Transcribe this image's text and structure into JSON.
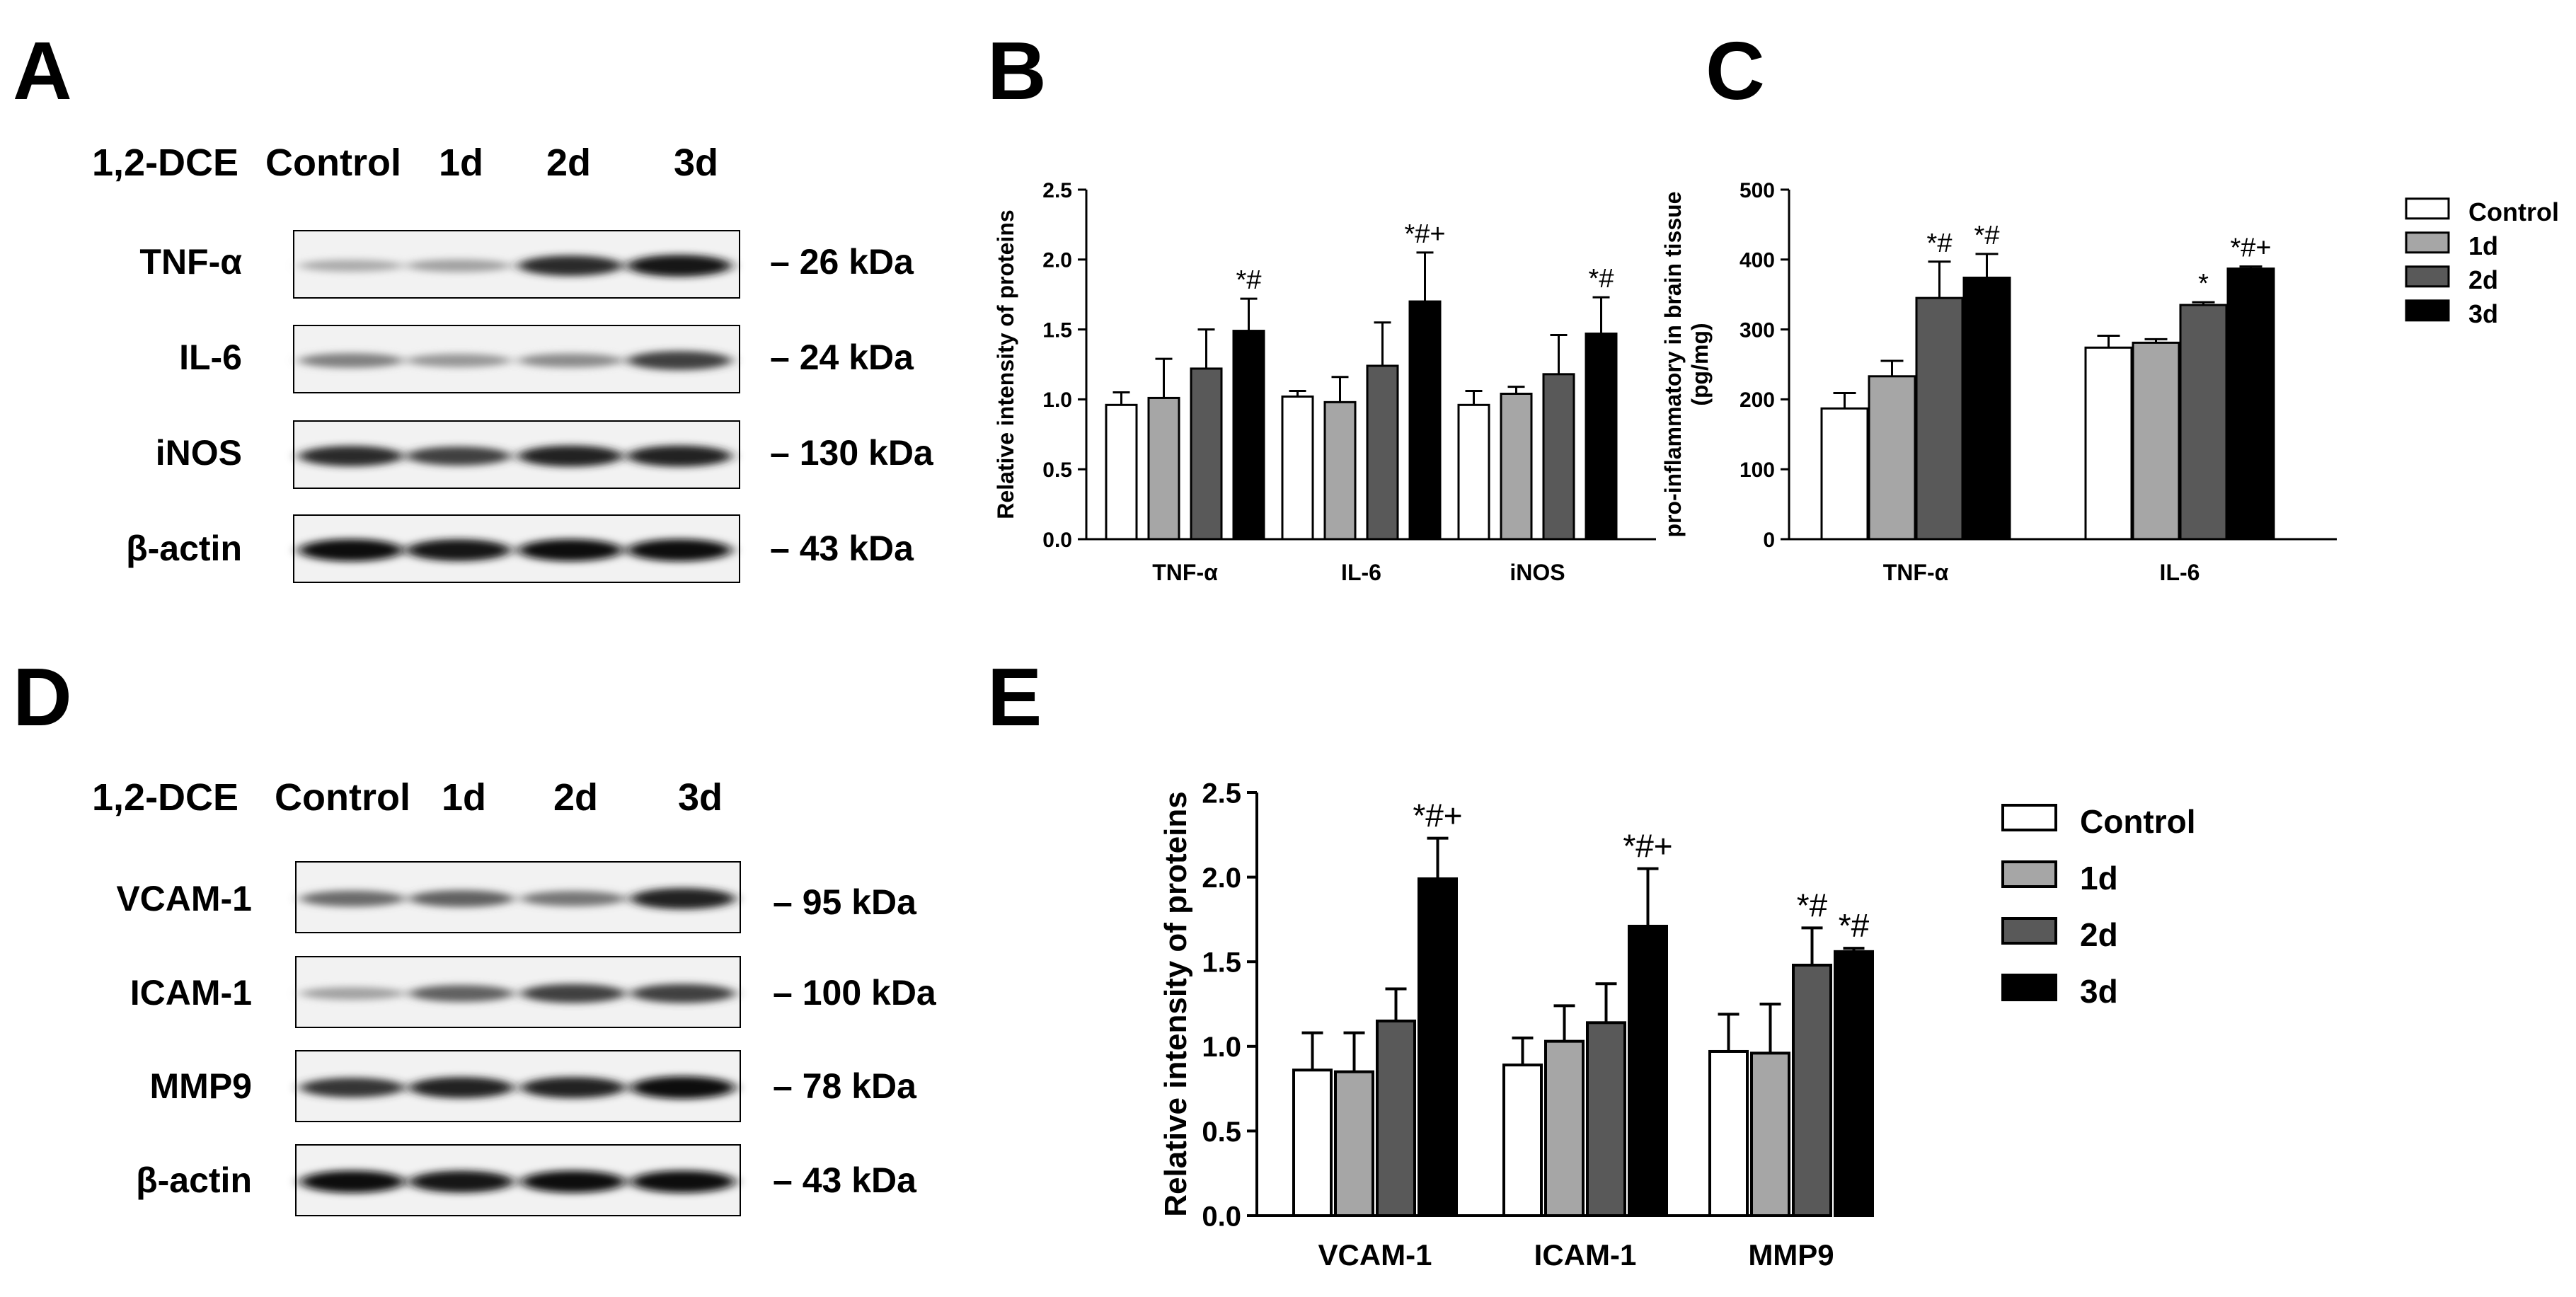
{
  "panel_labels": {
    "A": "A",
    "B": "B",
    "C": "C",
    "D": "D",
    "E": "E"
  },
  "blot_A": {
    "treatment_label": "1,2-DCE",
    "lanes": [
      "Control",
      "1d",
      "2d",
      "3d"
    ],
    "rows": [
      {
        "protein": "TNF-α",
        "marker": "– 26 kDa",
        "intensity": [
          0.25,
          0.3,
          0.85,
          0.95
        ]
      },
      {
        "protein": "IL-6",
        "marker": "– 24 kDa",
        "intensity": [
          0.45,
          0.35,
          0.4,
          0.75
        ]
      },
      {
        "protein": "iNOS",
        "marker": "– 130 kDa",
        "intensity": [
          0.85,
          0.75,
          0.9,
          0.9
        ]
      },
      {
        "protein": "β-actin",
        "marker": "– 43 kDa",
        "intensity": [
          0.98,
          0.95,
          0.97,
          0.98
        ]
      }
    ]
  },
  "blot_D": {
    "treatment_label": "1,2-DCE",
    "lanes": [
      "Control",
      "1d",
      "2d",
      "3d"
    ],
    "rows": [
      {
        "protein": "VCAM-1",
        "marker": "– 95 kDa",
        "intensity": [
          0.55,
          0.6,
          0.5,
          0.9
        ]
      },
      {
        "protein": "ICAM-1",
        "marker": "– 100 kDa",
        "intensity": [
          0.3,
          0.6,
          0.75,
          0.75
        ]
      },
      {
        "protein": "MMP9",
        "marker": "– 78 kDa",
        "intensity": [
          0.8,
          0.9,
          0.9,
          1.0
        ]
      },
      {
        "protein": "β-actin",
        "marker": "– 43 kDa",
        "intensity": [
          0.98,
          0.96,
          0.97,
          0.98
        ]
      }
    ]
  },
  "legend": {
    "groups": [
      "Control",
      "1d",
      "2d",
      "3d"
    ],
    "colors": [
      "#ffffff",
      "#a6a6a6",
      "#595959",
      "#000000"
    ]
  },
  "chart_data": [
    {
      "id": "B",
      "type": "bar",
      "title": "",
      "xlabel": "",
      "ylabel": "Relative intensity of proteins",
      "ylim": [
        0,
        2.5
      ],
      "yticks": [
        "0.0",
        "0.5",
        "1.0",
        "1.5",
        "2.0",
        "2.5"
      ],
      "categories": [
        "TNF-α",
        "IL-6",
        "iNOS"
      ],
      "series": [
        {
          "name": "Control",
          "values": [
            0.96,
            1.02,
            0.96
          ],
          "errors": [
            0.09,
            0.04,
            0.1
          ]
        },
        {
          "name": "1d",
          "values": [
            1.01,
            0.98,
            1.04
          ],
          "errors": [
            0.28,
            0.18,
            0.05
          ]
        },
        {
          "name": "2d",
          "values": [
            1.22,
            1.24,
            1.18
          ],
          "errors": [
            0.28,
            0.31,
            0.28
          ]
        },
        {
          "name": "3d",
          "values": [
            1.49,
            1.7,
            1.47
          ],
          "errors": [
            0.23,
            0.35,
            0.26
          ]
        }
      ],
      "annotations": [
        {
          "category": 0,
          "series": 3,
          "text": "*#"
        },
        {
          "category": 1,
          "series": 3,
          "text": "*#+"
        },
        {
          "category": 2,
          "series": 3,
          "text": "*#"
        }
      ]
    },
    {
      "id": "C",
      "type": "bar",
      "title": "",
      "xlabel": "",
      "ylabel": "pro-inflammatory in brain tissue",
      "ylabel2": "(pg/mg)",
      "ylim": [
        0,
        500
      ],
      "yticks": [
        "0",
        "100",
        "200",
        "300",
        "400",
        "500"
      ],
      "categories": [
        "TNF-α",
        "IL-6"
      ],
      "series": [
        {
          "name": "Control",
          "values": [
            187,
            274
          ],
          "errors": [
            22,
            17
          ]
        },
        {
          "name": "1d",
          "values": [
            233,
            281
          ],
          "errors": [
            22,
            5
          ]
        },
        {
          "name": "2d",
          "values": [
            345,
            335
          ],
          "errors": [
            52,
            4
          ]
        },
        {
          "name": "3d",
          "values": [
            374,
            387
          ],
          "errors": [
            34,
            3
          ]
        }
      ],
      "annotations": [
        {
          "category": 0,
          "series": 2,
          "text": "*#"
        },
        {
          "category": 0,
          "series": 3,
          "text": "*#"
        },
        {
          "category": 1,
          "series": 2,
          "text": "*"
        },
        {
          "category": 1,
          "series": 3,
          "text": "*#+"
        }
      ],
      "legend": "right"
    },
    {
      "id": "E",
      "type": "bar",
      "title": "",
      "xlabel": "",
      "ylabel": "Relative intensity of proteins",
      "ylim": [
        0,
        2.5
      ],
      "yticks": [
        "0.0",
        "0.5",
        "1.0",
        "1.5",
        "2.0",
        "2.5"
      ],
      "categories": [
        "VCAM-1",
        "ICAM-1",
        "MMP9"
      ],
      "series": [
        {
          "name": "Control",
          "values": [
            0.86,
            0.89,
            0.97
          ],
          "errors": [
            0.22,
            0.16,
            0.22
          ]
        },
        {
          "name": "1d",
          "values": [
            0.85,
            1.03,
            0.96
          ],
          "errors": [
            0.23,
            0.21,
            0.29
          ]
        },
        {
          "name": "2d",
          "values": [
            1.15,
            1.14,
            1.48
          ],
          "errors": [
            0.19,
            0.23,
            0.22
          ]
        },
        {
          "name": "3d",
          "values": [
            1.99,
            1.71,
            1.56
          ],
          "errors": [
            0.24,
            0.34,
            0.02
          ]
        }
      ],
      "annotations": [
        {
          "category": 0,
          "series": 3,
          "text": "*#+"
        },
        {
          "category": 1,
          "series": 3,
          "text": "*#+"
        },
        {
          "category": 2,
          "series": 2,
          "text": "*#"
        },
        {
          "category": 2,
          "series": 3,
          "text": "*#"
        }
      ],
      "legend": "right"
    }
  ]
}
